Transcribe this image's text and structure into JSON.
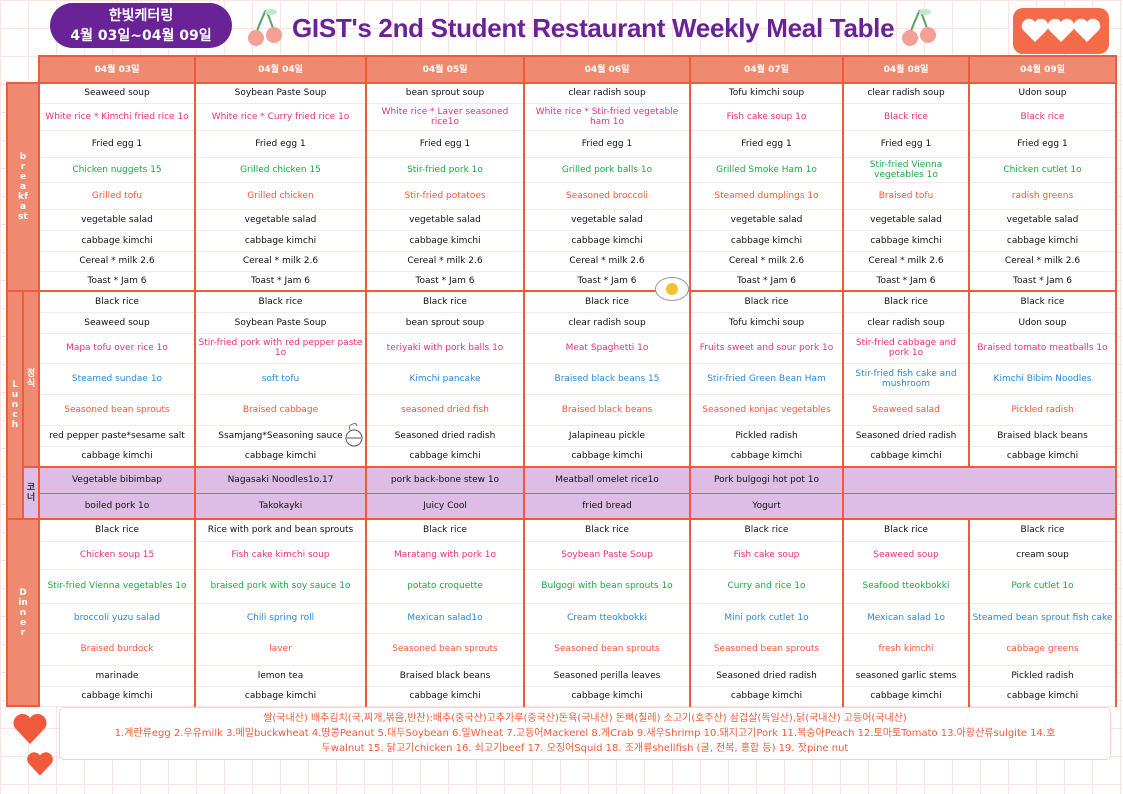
{
  "header": {
    "caterer": "한빛케터링",
    "period": "4월 03일~04월 09일",
    "title": "GIST's 2nd Student Restaurant Weekly Meal Table"
  },
  "colors": {
    "accent": "#f05a3a",
    "header_bg": "#ef8a70",
    "badge": "#6a2396",
    "corner_bg": "#ddbde6",
    "pink": "#e8307a",
    "green": "#1aaa44",
    "blue": "#2a8ad8",
    "orange": "#f05a3a",
    "black": "#111111"
  },
  "dates": [
    "04월 03일",
    "04월 04일",
    "04월 05일",
    "04월 06일",
    "04월 07일",
    "04월 08일",
    "04월 09일"
  ],
  "sections": [
    {
      "label": "breakfast",
      "sublabel": "",
      "rows": [
        {
          "color": "black",
          "items": [
            "Seaweed soup",
            "Soybean Paste Soup",
            "bean sprout soup",
            "clear radish soup",
            "Tofu kimchi soup",
            "clear radish soup",
            "Udon soup"
          ]
        },
        {
          "color": "pink",
          "items": [
            "White rice * Kimchi fried rice 1o",
            "White rice * Curry fried rice 1o",
            "White rice * Laver seasoned rice1o",
            "White rice * Stir-fried vegetable ham 1o",
            "Fish cake soup 1o",
            "Black rice",
            "Black rice"
          ]
        },
        {
          "color": "black",
          "items": [
            "Fried egg 1",
            "Fried egg 1",
            "Fried egg 1",
            "Fried egg 1",
            "Fried egg 1",
            "Fried egg 1",
            "Fried egg 1"
          ]
        },
        {
          "color": "green",
          "items": [
            "Chicken nuggets 15",
            "Grilled chicken 15",
            "Stir-fried pork 1o",
            "Grilled pork balls 1o",
            "Grilled Smoke Ham 1o",
            "Stir-fried Vienna vegetables 1o",
            "Chicken cutlet 1o"
          ]
        },
        {
          "color": "orange",
          "items": [
            "Grilled tofu",
            "Grilled chicken",
            "Stir-fried potatoes",
            "Seasoned broccoli",
            "Steamed dumplings 1o",
            "Braised tofu",
            "radish greens"
          ]
        },
        {
          "color": "black",
          "items": [
            "vegetable salad",
            "vegetable salad",
            "vegetable salad",
            "vegetable salad",
            "vegetable salad",
            "vegetable salad",
            "vegetable salad"
          ]
        },
        {
          "color": "black",
          "items": [
            "cabbage kimchi",
            "cabbage kimchi",
            "cabbage kimchi",
            "cabbage kimchi",
            "cabbage kimchi",
            "cabbage kimchi",
            "cabbage kimchi"
          ]
        },
        {
          "color": "black",
          "items": [
            "Cereal * milk 2.6",
            "Cereal * milk 2.6",
            "Cereal * milk 2.6",
            "Cereal * milk 2.6",
            "Cereal * milk 2.6",
            "Cereal * milk 2.6",
            "Cereal * milk 2.6"
          ]
        },
        {
          "color": "black",
          "items": [
            "Toast * Jam 6",
            "Toast * Jam 6",
            "Toast * Jam 6",
            "Toast * Jam 6",
            "Toast * Jam 6",
            "Toast * Jam 6",
            "Toast * Jam 6"
          ]
        }
      ]
    },
    {
      "label": "Lunch",
      "sublabel": "정식",
      "rows": [
        {
          "color": "black",
          "items": [
            "Black rice",
            "Black rice",
            "Black rice",
            "Black rice",
            "Black rice",
            "Black rice",
            "Black rice"
          ]
        },
        {
          "color": "black",
          "items": [
            "Seaweed soup",
            "Soybean Paste Soup",
            "bean sprout soup",
            "clear radish soup",
            "Tofu kimchi soup",
            "clear radish soup",
            "Udon soup"
          ]
        },
        {
          "color": "pink",
          "items": [
            "Mapa tofu over rice 1o",
            "Stir-fried pork with red pepper paste 1o",
            "teriyaki with pork balls 1o",
            "Meat Spaghetti 1o",
            "Fruits sweet and sour pork 1o",
            "Stir-fried cabbage and pork 1o",
            "Braised tomato meatballs 1o"
          ]
        },
        {
          "color": "blue",
          "items": [
            "Steamed sundae 1o",
            "soft tofu",
            "Kimchi pancake",
            "Braised black beans 15",
            "Stir-fried Green Bean Ham",
            "Stir-fried fish cake and mushroom",
            "Kimchi Bibim Noodles"
          ]
        },
        {
          "color": "orange",
          "items": [
            "Seasoned bean sprouts",
            "Braised cabbage",
            "seasoned dried fish",
            "Braised black beans",
            "Seasoned konjac vegetables",
            "Seaweed salad",
            "Pickled radish"
          ]
        },
        {
          "color": "black",
          "items": [
            "red pepper paste*sesame salt",
            "Ssamjang*Seasoning sauce",
            "Seasoned dried radish",
            "Jalapineau pickle",
            "Pickled radish",
            "Seasoned dried radish",
            "Braised black beans"
          ]
        },
        {
          "color": "black",
          "items": [
            "cabbage kimchi",
            "cabbage kimchi",
            "cabbage kimchi",
            "cabbage kimchi",
            "cabbage kimchi",
            "cabbage kimchi",
            "cabbage kimchi"
          ]
        }
      ]
    },
    {
      "label": "",
      "sublabel": "코너",
      "corner": true,
      "rows": [
        {
          "color": "black",
          "items": [
            "Vegetable bibimbap",
            "Nagasaki Noodles1o.17",
            "pork back-bone stew 1o",
            "Meatball omelet rice1o",
            "Pork bulgogi hot pot 1o",
            "",
            ""
          ]
        },
        {
          "color": "black",
          "items": [
            "boiled pork 1o",
            "Takokayki",
            "Juicy Cool",
            "fried bread",
            "Yogurt",
            "",
            ""
          ]
        }
      ]
    },
    {
      "label": "Dinner",
      "sublabel": "",
      "rows": [
        {
          "color": "black",
          "items": [
            "Black rice",
            "Rice with pork and bean sprouts",
            "Black rice",
            "Black rice",
            "Black rice",
            "Black rice",
            "Black rice"
          ]
        },
        {
          "color": "pink",
          "items": [
            "Chicken soup 15",
            "Fish cake kimchi soup",
            "Maratang with pork 1o",
            "Soybean Paste Soup",
            "Fish cake soup",
            "Seaweed soup",
            "cream soup"
          ]
        },
        {
          "color": "green",
          "items": [
            "Stir-fried Vienna vegetables 1o",
            "braised pork with soy sauce 1o",
            "potato croquette",
            "Bulgogi with bean sprouts 1o",
            "Curry and rice 1o",
            "Seafood tteokbokki",
            "Pork cutlet 1o"
          ]
        },
        {
          "color": "blue",
          "items": [
            "broccoli yuzu salad",
            "Chili spring roll",
            "Mexican salad1o",
            "Cream tteokbokki",
            "Mini pork cutlet 1o",
            "Mexican salad 1o",
            "Steamed bean sprout fish cake"
          ]
        },
        {
          "color": "orange",
          "items": [
            "Braised burdock",
            "laver",
            "Seasoned bean sprouts",
            "Seasoned bean sprouts",
            "Seasoned bean sprouts",
            "fresh kimchi",
            "cabbage greens"
          ]
        },
        {
          "color": "black",
          "items": [
            "marinade",
            "lemon tea",
            "Braised black beans",
            "Seasoned perilla leaves",
            "Seasoned dried radish",
            "seasoned garlic stems",
            "Pickled radish"
          ]
        },
        {
          "color": "black",
          "items": [
            "cabbage kimchi",
            "cabbage kimchi",
            "cabbage kimchi",
            "cabbage kimchi",
            "cabbage kimchi",
            "cabbage kimchi",
            "cabbage kimchi"
          ]
        }
      ]
    }
  ],
  "footer": {
    "origin": "쌀(국내산) 배추김치(국,찌개,볶음,반찬):배추(중국산)고추가루(중국산)돈육(국내산) 돈뼈(칠레) 소고기(호주산) 삼겹살(독일산),닭(국내산) 고등어(국내산)",
    "allergens_1": "1.계란류egg 2.우유milk 3.메밀buckwheat 4.땅콩Peanut 5.대두Soybean 6.밀Wheat 7.고등어Mackerel 8.게Crab 9.새우Shrimp 10.돼지고기Pork 11.복숭아Peach 12.토마토Tomato 13.아황산류sulgite 14.호",
    "allergens_2": "두walnut 15. 닭고기chicken 16. 쇠고기beef 17. 오징어Squid 18. 조개류shellfish (굴, 전복, 홍합 등) 19. 잣pine nut"
  }
}
